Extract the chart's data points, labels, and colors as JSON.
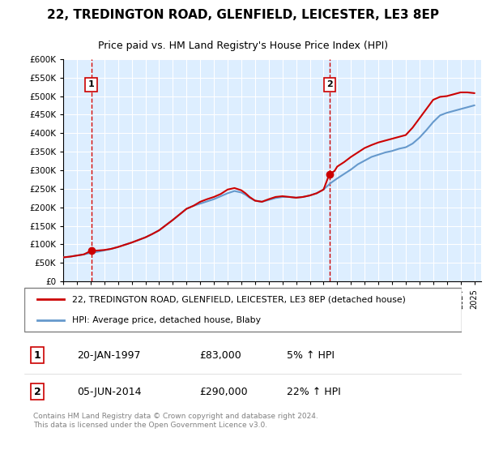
{
  "title": "22, TREDINGTON ROAD, GLENFIELD, LEICESTER, LE3 8EP",
  "subtitle": "Price paid vs. HM Land Registry's House Price Index (HPI)",
  "ylabel_ticks": [
    "£0",
    "£50K",
    "£100K",
    "£150K",
    "£200K",
    "£250K",
    "£300K",
    "£350K",
    "£400K",
    "£450K",
    "£500K",
    "£550K",
    "£600K"
  ],
  "ylim": [
    0,
    600000
  ],
  "xlim_start": 1995.0,
  "xlim_end": 2025.5,
  "sale1_x": 1997.05,
  "sale1_y": 83000,
  "sale2_x": 2014.43,
  "sale2_y": 290000,
  "sale1_label": "1",
  "sale2_label": "2",
  "sale1_date": "20-JAN-1997",
  "sale1_price": "£83,000",
  "sale1_hpi": "5% ↑ HPI",
  "sale2_date": "05-JUN-2014",
  "sale2_price": "£290,000",
  "sale2_hpi": "22% ↑ HPI",
  "legend_line1": "22, TREDINGTON ROAD, GLENFIELD, LEICESTER, LE3 8EP (detached house)",
  "legend_line2": "HPI: Average price, detached house, Blaby",
  "footer": "Contains HM Land Registry data © Crown copyright and database right 2024.\nThis data is licensed under the Open Government Licence v3.0.",
  "line_color_red": "#cc0000",
  "line_color_blue": "#6699cc",
  "background_color": "#ddeeff",
  "grid_color": "#ffffff",
  "dashed_line_color": "#cc0000",
  "marker_color_red": "#cc0000",
  "hpi_years": [
    1995.0,
    1995.5,
    1996.0,
    1996.5,
    1997.0,
    1997.5,
    1998.0,
    1998.5,
    1999.0,
    1999.5,
    2000.0,
    2000.5,
    2001.0,
    2001.5,
    2002.0,
    2002.5,
    2003.0,
    2003.5,
    2004.0,
    2004.5,
    2005.0,
    2005.5,
    2006.0,
    2006.5,
    2007.0,
    2007.5,
    2008.0,
    2008.3,
    2008.6,
    2009.0,
    2009.5,
    2010.0,
    2010.5,
    2011.0,
    2011.5,
    2012.0,
    2012.5,
    2013.0,
    2013.5,
    2014.0,
    2014.5,
    2015.0,
    2015.5,
    2016.0,
    2016.5,
    2017.0,
    2017.5,
    2018.0,
    2018.5,
    2019.0,
    2019.5,
    2020.0,
    2020.5,
    2021.0,
    2021.5,
    2022.0,
    2022.5,
    2023.0,
    2023.5,
    2024.0,
    2024.5,
    2025.0
  ],
  "hpi_values": [
    65000,
    67000,
    70000,
    73000,
    77000,
    80000,
    84000,
    88000,
    93000,
    99000,
    105000,
    112000,
    119000,
    128000,
    138000,
    152000,
    166000,
    181000,
    196000,
    204000,
    210000,
    216000,
    222000,
    230000,
    238000,
    244000,
    240000,
    234000,
    226000,
    218000,
    215000,
    220000,
    225000,
    228000,
    228000,
    226000,
    228000,
    232000,
    238000,
    248000,
    265000,
    278000,
    290000,
    302000,
    316000,
    326000,
    336000,
    342000,
    348000,
    352000,
    358000,
    362000,
    372000,
    388000,
    408000,
    430000,
    448000,
    455000,
    460000,
    465000,
    470000,
    475000
  ],
  "price_years": [
    1995.0,
    1995.5,
    1996.0,
    1996.5,
    1997.05,
    1997.5,
    1998.0,
    1998.5,
    1999.0,
    1999.5,
    2000.0,
    2000.5,
    2001.0,
    2001.5,
    2002.0,
    2002.5,
    2003.0,
    2003.5,
    2004.0,
    2004.5,
    2005.0,
    2005.5,
    2006.0,
    2006.5,
    2007.0,
    2007.5,
    2008.0,
    2008.3,
    2008.6,
    2009.0,
    2009.5,
    2010.0,
    2010.5,
    2011.0,
    2011.5,
    2012.0,
    2012.5,
    2013.0,
    2013.5,
    2014.0,
    2014.43,
    2014.8,
    2015.0,
    2015.5,
    2016.0,
    2016.5,
    2017.0,
    2017.5,
    2018.0,
    2018.5,
    2019.0,
    2019.5,
    2020.0,
    2020.5,
    2021.0,
    2021.5,
    2022.0,
    2022.5,
    2023.0,
    2023.5,
    2024.0,
    2024.5,
    2025.0
  ],
  "price_values": [
    65000,
    67000,
    70000,
    73000,
    83000,
    83500,
    85000,
    88000,
    93000,
    99000,
    105000,
    112000,
    119000,
    128000,
    138000,
    152000,
    166000,
    181000,
    196000,
    204000,
    215000,
    222000,
    228000,
    236000,
    248000,
    252000,
    246000,
    238000,
    228000,
    218000,
    215000,
    222000,
    228000,
    230000,
    228000,
    226000,
    228000,
    232000,
    238000,
    248000,
    290000,
    298000,
    310000,
    322000,
    336000,
    348000,
    360000,
    368000,
    375000,
    380000,
    385000,
    390000,
    395000,
    415000,
    440000,
    465000,
    490000,
    498000,
    500000,
    505000,
    510000,
    510000,
    508000
  ]
}
